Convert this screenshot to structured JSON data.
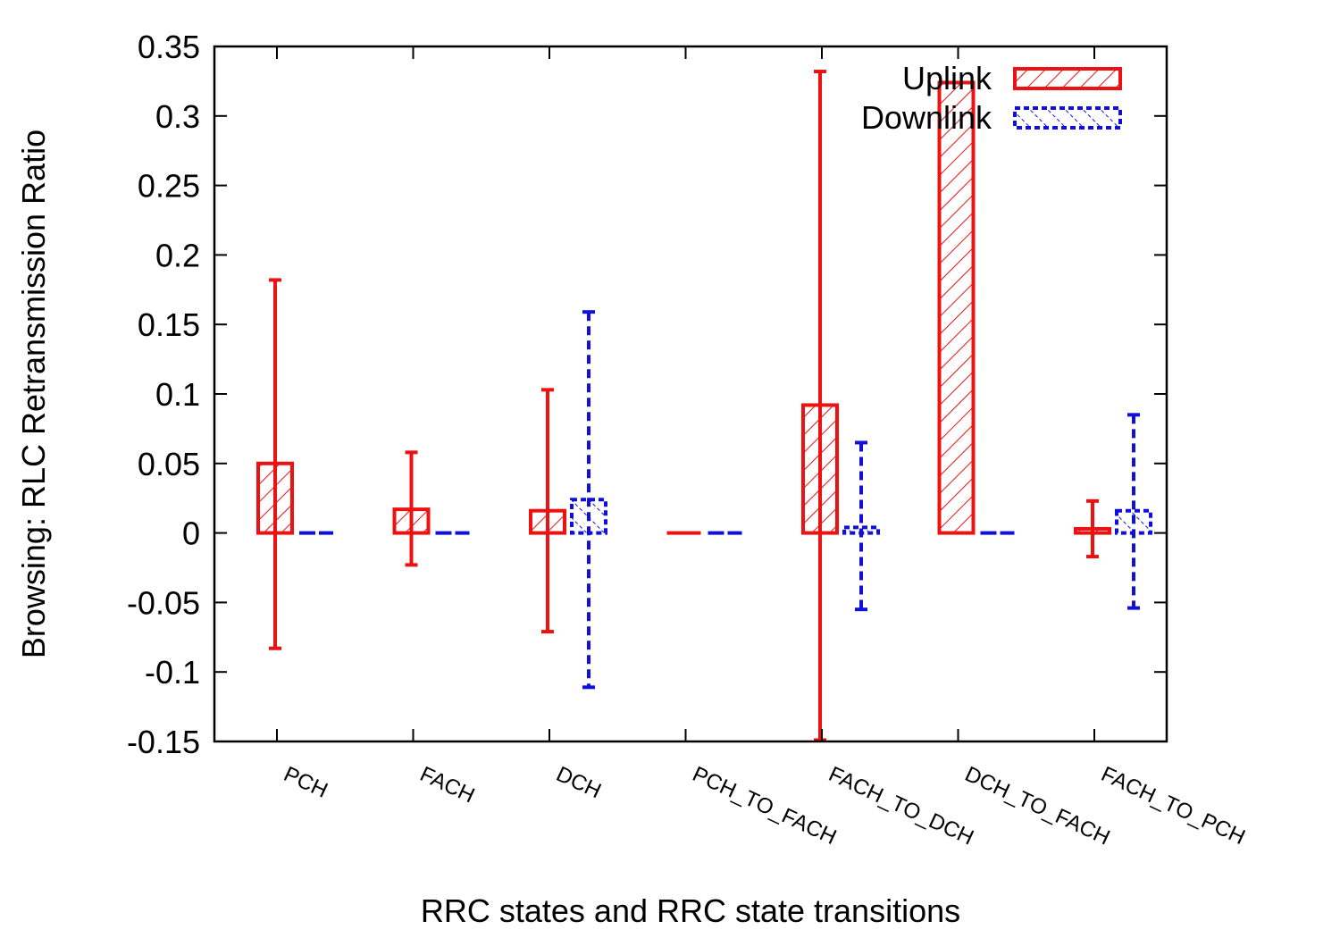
{
  "chart_data": {
    "type": "bar",
    "xlabel": "RRC states and RRC state transitions",
    "ylabel": "Browsing: RLC Retransmission Ratio",
    "ylim": [
      -0.15,
      0.35
    ],
    "yticks": [
      "-0.15",
      "-0.1",
      "-0.05",
      "0",
      "0.05",
      "0.1",
      "0.15",
      "0.2",
      "0.25",
      "0.3",
      "0.35"
    ],
    "yticks_values": [
      -0.15,
      -0.1,
      -0.05,
      0,
      0.05,
      0.1,
      0.15,
      0.2,
      0.25,
      0.3,
      0.35
    ],
    "categories": [
      "PCH",
      "FACH",
      "DCH",
      "PCH_TO_FACH",
      "FACH_TO_DCH",
      "DCH_TO_FACH",
      "FACH_TO_PCH"
    ],
    "legend_position": "top-right",
    "series": [
      {
        "name": "Uplink",
        "color": "#ee1111",
        "pattern": "hatch-solid",
        "values": [
          0.05,
          0.017,
          0.016,
          0.0,
          0.092,
          0.324,
          0.003
        ],
        "err_low": [
          -0.083,
          -0.023,
          -0.071,
          0.0,
          -0.149,
          0.0,
          -0.017
        ],
        "err_high": [
          0.182,
          0.058,
          0.103,
          0.0,
          0.332,
          0.0,
          0.023
        ]
      },
      {
        "name": "Downlink",
        "color": "#1010dd",
        "pattern": "hatch-dashed",
        "values": [
          0.0,
          0.0,
          0.024,
          0.0,
          0.004,
          0.0,
          0.016
        ],
        "err_low": [
          0.0,
          0.0,
          -0.111,
          0.0,
          -0.055,
          0.0,
          -0.054
        ],
        "err_high": [
          0.0,
          0.0,
          0.159,
          0.0,
          0.065,
          0.0,
          0.085
        ]
      }
    ],
    "grid": false
  }
}
